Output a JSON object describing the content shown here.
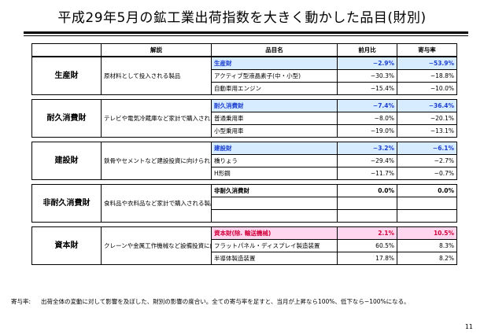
{
  "title": "平成29年5月の鉱工業出荷指数を大きく動かした品目(財別)",
  "table": {
    "headers": {
      "expl": "解説",
      "item": "品目名",
      "mom": "前月比",
      "contrib": "寄与率"
    },
    "groups": [
      {
        "category": "生産財",
        "explanation": "原材料として投入される製品",
        "lead": {
          "name": "生産財",
          "mom": "−2.9%",
          "contrib": "−53.9%",
          "style": "blue"
        },
        "rows": [
          {
            "name": "アクティブ型液晶素子(中・小型)",
            "mom": "−30.3%",
            "contrib": "−18.8%"
          },
          {
            "name": "自動車用エンジン",
            "mom": "−15.4%",
            "contrib": "−10.0%"
          }
        ]
      },
      {
        "category": "耐久消費財",
        "explanation": "テレビや電気冷蔵庫など家計で購入される製品",
        "lead": {
          "name": "耐久消費財",
          "mom": "−7.4%",
          "contrib": "−36.4%",
          "style": "blue"
        },
        "rows": [
          {
            "name": "普通乗用車",
            "mom": "−8.0%",
            "contrib": "−20.1%"
          },
          {
            "name": "小型乗用車",
            "mom": "−19.0%",
            "contrib": "−13.1%"
          }
        ]
      },
      {
        "category": "建設財",
        "explanation": "鉄骨やセメントなど建設投資に向けられる製品",
        "lead": {
          "name": "建設財",
          "mom": "−3.2%",
          "contrib": "−6.1%",
          "style": "blue"
        },
        "rows": [
          {
            "name": "橋りょう",
            "mom": "−29.4%",
            "contrib": "−2.7%"
          },
          {
            "name": "H形鋼",
            "mom": "−11.7%",
            "contrib": "−0.7%"
          }
        ]
      },
      {
        "category": "非耐久消費財",
        "explanation": "食料品や衣料品など家計で購入される製品",
        "lead": {
          "name": "非耐久消費財",
          "mom": "0.0%",
          "contrib": "0.0%",
          "style": "plain"
        },
        "rows": [
          {
            "name": "",
            "mom": "",
            "contrib": ""
          },
          {
            "name": "",
            "mom": "",
            "contrib": ""
          }
        ]
      },
      {
        "category": "資本財",
        "explanation": "クレーンや金属工作機械など設備投資に向けられる製品",
        "lead": {
          "name": "資本財(除. 輸送機械)",
          "mom": "2.1%",
          "contrib": "10.5%",
          "style": "pink"
        },
        "rows": [
          {
            "name": "フラットパネル・ディスプレイ製造装置",
            "mom": "60.5%",
            "contrib": "8.3%"
          },
          {
            "name": "半導体製造装置",
            "mom": "17.8%",
            "contrib": "8.2%"
          }
        ]
      }
    ]
  },
  "footnote": {
    "label": "寄与率:",
    "text": "出荷全体の変動に対して影響を及ぼした、財別の影響の度合い。全ての寄与率を足すと、当月が上昇なら100%、低下なら−100%になる。"
  },
  "page_number": "11"
}
